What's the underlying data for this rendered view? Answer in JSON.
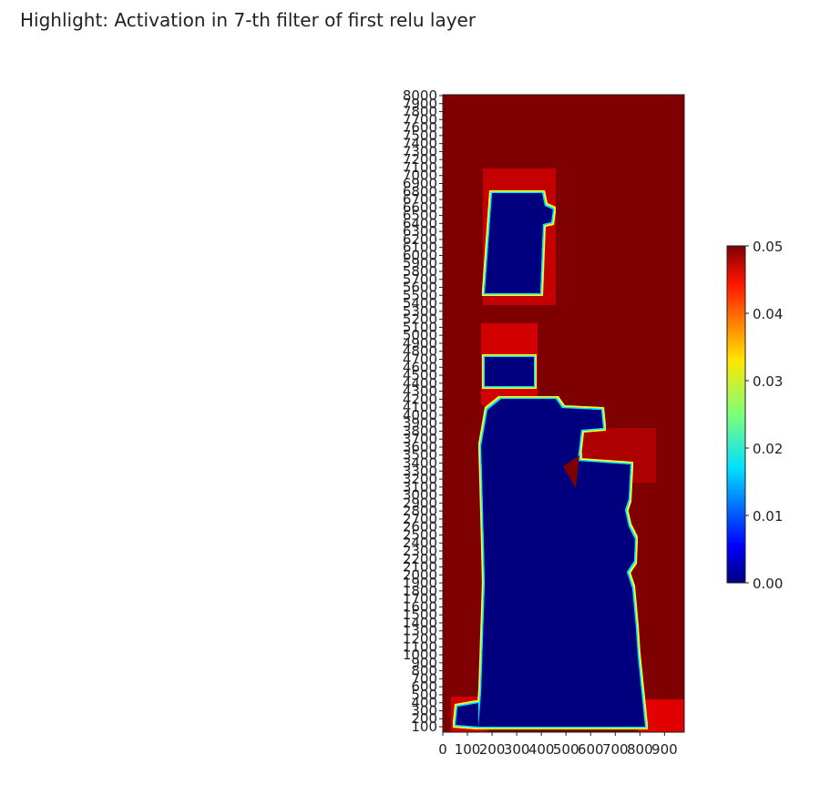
{
  "title": "Highlight: Activation in 7-th filter of first relu layer",
  "chart_data": {
    "type": "heatmap",
    "title": "Highlight: Activation in 7-th filter of first relu layer",
    "xlabel": "",
    "ylabel": "",
    "colormap": "jet",
    "x_ticks": [
      "0",
      "100",
      "200",
      "300",
      "400",
      "500",
      "600",
      "700",
      "800",
      "900"
    ],
    "y_ticks": [
      "100",
      "200",
      "300",
      "400",
      "500",
      "600",
      "700",
      "800",
      "900",
      "1000",
      "1100",
      "1200",
      "1300",
      "1400",
      "1500",
      "1600",
      "1700",
      "1800",
      "1900",
      "2000",
      "2100",
      "2200",
      "2300",
      "2400",
      "2500",
      "2600",
      "2700",
      "2800",
      "2900",
      "3000",
      "3100",
      "3200",
      "3300",
      "3400",
      "3500",
      "3600",
      "3700",
      "3800",
      "3900",
      "4000",
      "4100",
      "4200",
      "4300",
      "4400",
      "4500",
      "4600",
      "4700",
      "4800",
      "4900",
      "5000",
      "5100",
      "5200",
      "5300",
      "5400",
      "5500",
      "5600",
      "5700",
      "5800",
      "5900",
      "6000",
      "6100",
      "6200",
      "6300",
      "6400",
      "6500",
      "6600",
      "6700",
      "6800",
      "6900",
      "7000",
      "7100",
      "7200",
      "7300",
      "7400",
      "7500",
      "7600",
      "7700",
      "7800",
      "7900",
      "8000"
    ],
    "xlim": [
      0,
      980
    ],
    "ylim": [
      0,
      8000
    ],
    "colorbar": {
      "min": 0.0,
      "max": 0.05,
      "ticks": [
        "0.00",
        "0.01",
        "0.02",
        "0.03",
        "0.04",
        "0.05"
      ]
    },
    "regions": [
      {
        "name": "background",
        "value": 0.05
      },
      {
        "name": "upper-block",
        "x": [
          170,
          400
        ],
        "y": [
          5650,
          6650
        ],
        "value": 0.0
      },
      {
        "name": "middle-strip",
        "x": [
          170,
          370
        ],
        "y": [
          4300,
          4600
        ],
        "value": 0.0
      },
      {
        "name": "lower-body",
        "x": [
          150,
          830
        ],
        "y": [
          100,
          4150
        ],
        "value": 0.0
      },
      {
        "name": "bottom-left-nub",
        "x": [
          65,
          150
        ],
        "y": [
          100,
          350
        ],
        "value": 0.0
      }
    ]
  }
}
